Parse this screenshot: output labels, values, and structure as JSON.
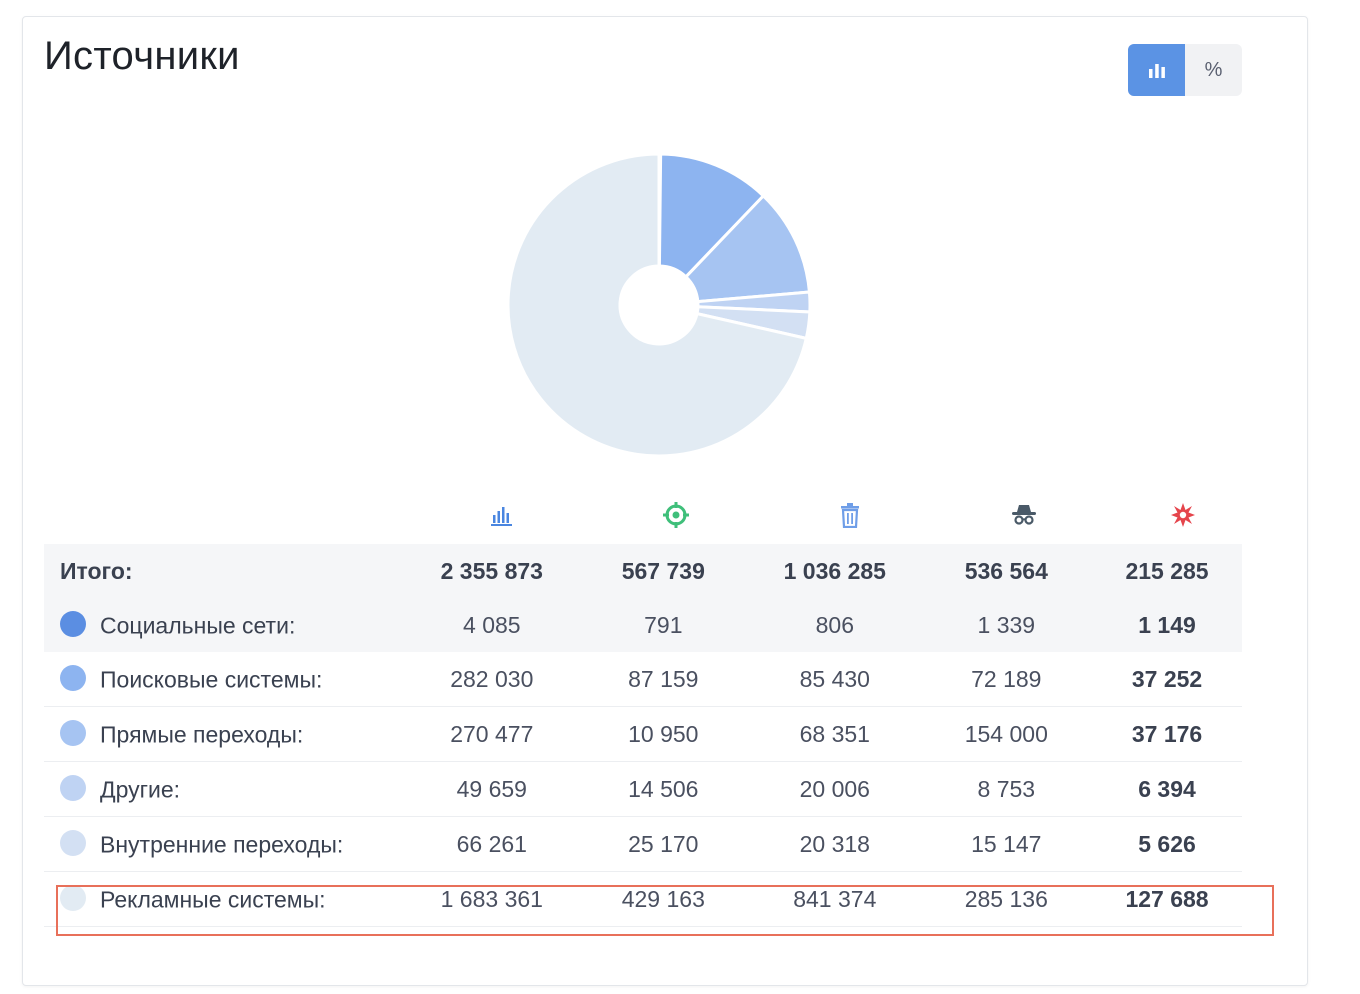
{
  "header": {
    "title": "Источники"
  },
  "toggle": {
    "chart_icon": "bar-chart-icon",
    "percent_label": "%"
  },
  "colors": {
    "accent": "#5b93e4",
    "highlight_border": "#e8705a",
    "slice_colors": [
      "#5b8ee2",
      "#8db4f0",
      "#a6c4f2",
      "#bfd3f3",
      "#d3e0f3",
      "#e2ebf3"
    ]
  },
  "column_icons": [
    {
      "name": "visits-bar-icon",
      "color": "#4a86e0"
    },
    {
      "name": "target-icon",
      "color": "#3fbf7a"
    },
    {
      "name": "trash-icon",
      "color": "#6f9ee8"
    },
    {
      "name": "spy-icon",
      "color": "#4a5a68"
    },
    {
      "name": "burst-icon",
      "color": "#e5454c"
    }
  ],
  "table": {
    "total": {
      "label": "Итого:",
      "values": [
        "2 355 873",
        "567 739",
        "1 036 285",
        "536 564",
        "215 285"
      ]
    },
    "rows": [
      {
        "label": "Социальные сети:",
        "values": [
          "4 085",
          "791",
          "806",
          "1 339",
          "1 149"
        ]
      },
      {
        "label": "Поисковые системы:",
        "values": [
          "282 030",
          "87 159",
          "85 430",
          "72 189",
          "37 252"
        ]
      },
      {
        "label": "Прямые переходы:",
        "values": [
          "270 477",
          "10 950",
          "68 351",
          "154 000",
          "37 176"
        ]
      },
      {
        "label": "Другие:",
        "values": [
          "49 659",
          "14 506",
          "20 006",
          "8 753",
          "6 394"
        ]
      },
      {
        "label": "Внутренние переходы:",
        "values": [
          "66 261",
          "25 170",
          "20 318",
          "15 147",
          "5 626"
        ]
      },
      {
        "label": "Рекламные системы:",
        "values": [
          "1 683 361",
          "429 163",
          "841 374",
          "285 136",
          "127 688"
        ]
      }
    ]
  },
  "chart_data": {
    "type": "pie",
    "donut": true,
    "series": [
      {
        "category": "Социальные сети",
        "value": 4085
      },
      {
        "category": "Поисковые системы",
        "value": 282030
      },
      {
        "category": "Прямые переходы",
        "value": 270477
      },
      {
        "category": "Другие",
        "value": 49659
      },
      {
        "category": "Внутренние переходы",
        "value": 66261
      },
      {
        "category": "Рекламные системы",
        "value": 1683361
      }
    ],
    "total": 2355873
  }
}
